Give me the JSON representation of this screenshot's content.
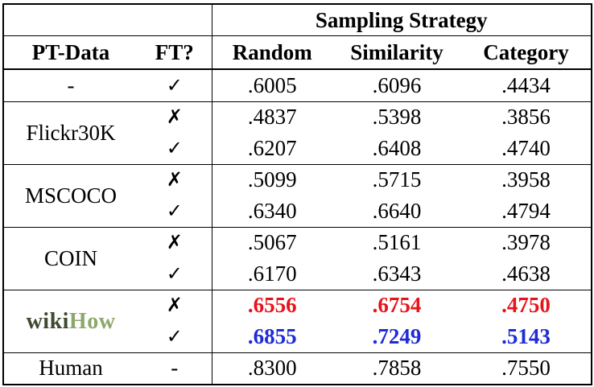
{
  "header": {
    "group_label": "Sampling Strategy",
    "columns": [
      "PT-Data",
      "FT?",
      "Random",
      "Similarity",
      "Category"
    ]
  },
  "rows": [
    {
      "pt": "-",
      "ft": "✓",
      "random": ".6005",
      "similarity": ".6096",
      "category": ".4434"
    },
    {
      "pt": "Flickr30K",
      "ft": "✗",
      "random": ".4837",
      "similarity": ".5398",
      "category": ".3856"
    },
    {
      "pt": "",
      "ft": "✓",
      "random": ".6207",
      "similarity": ".6408",
      "category": ".4740"
    },
    {
      "pt": "MSCOCO",
      "ft": "✗",
      "random": ".5099",
      "similarity": ".5715",
      "category": ".3958"
    },
    {
      "pt": "",
      "ft": "✓",
      "random": ".6340",
      "similarity": ".6640",
      "category": ".4794"
    },
    {
      "pt": "COIN",
      "ft": "✗",
      "random": ".5067",
      "similarity": ".5161",
      "category": ".3978"
    },
    {
      "pt": "",
      "ft": "✓",
      "random": ".6170",
      "similarity": ".6343",
      "category": ".4638"
    },
    {
      "pt": "wikiHow",
      "ft": "✗",
      "random": ".6556",
      "similarity": ".6754",
      "category": ".4750"
    },
    {
      "pt": "",
      "ft": "✓",
      "random": ".6855",
      "similarity": ".7249",
      "category": ".5143"
    },
    {
      "pt": "Human",
      "ft": "-",
      "random": ".8300",
      "similarity": ".7858",
      "category": ".7550"
    }
  ],
  "wikihow_logo": {
    "part1": "wiki",
    "part2": "How"
  },
  "colors": {
    "best": "#e8141c",
    "best_ft": "#1f2bd6"
  }
}
